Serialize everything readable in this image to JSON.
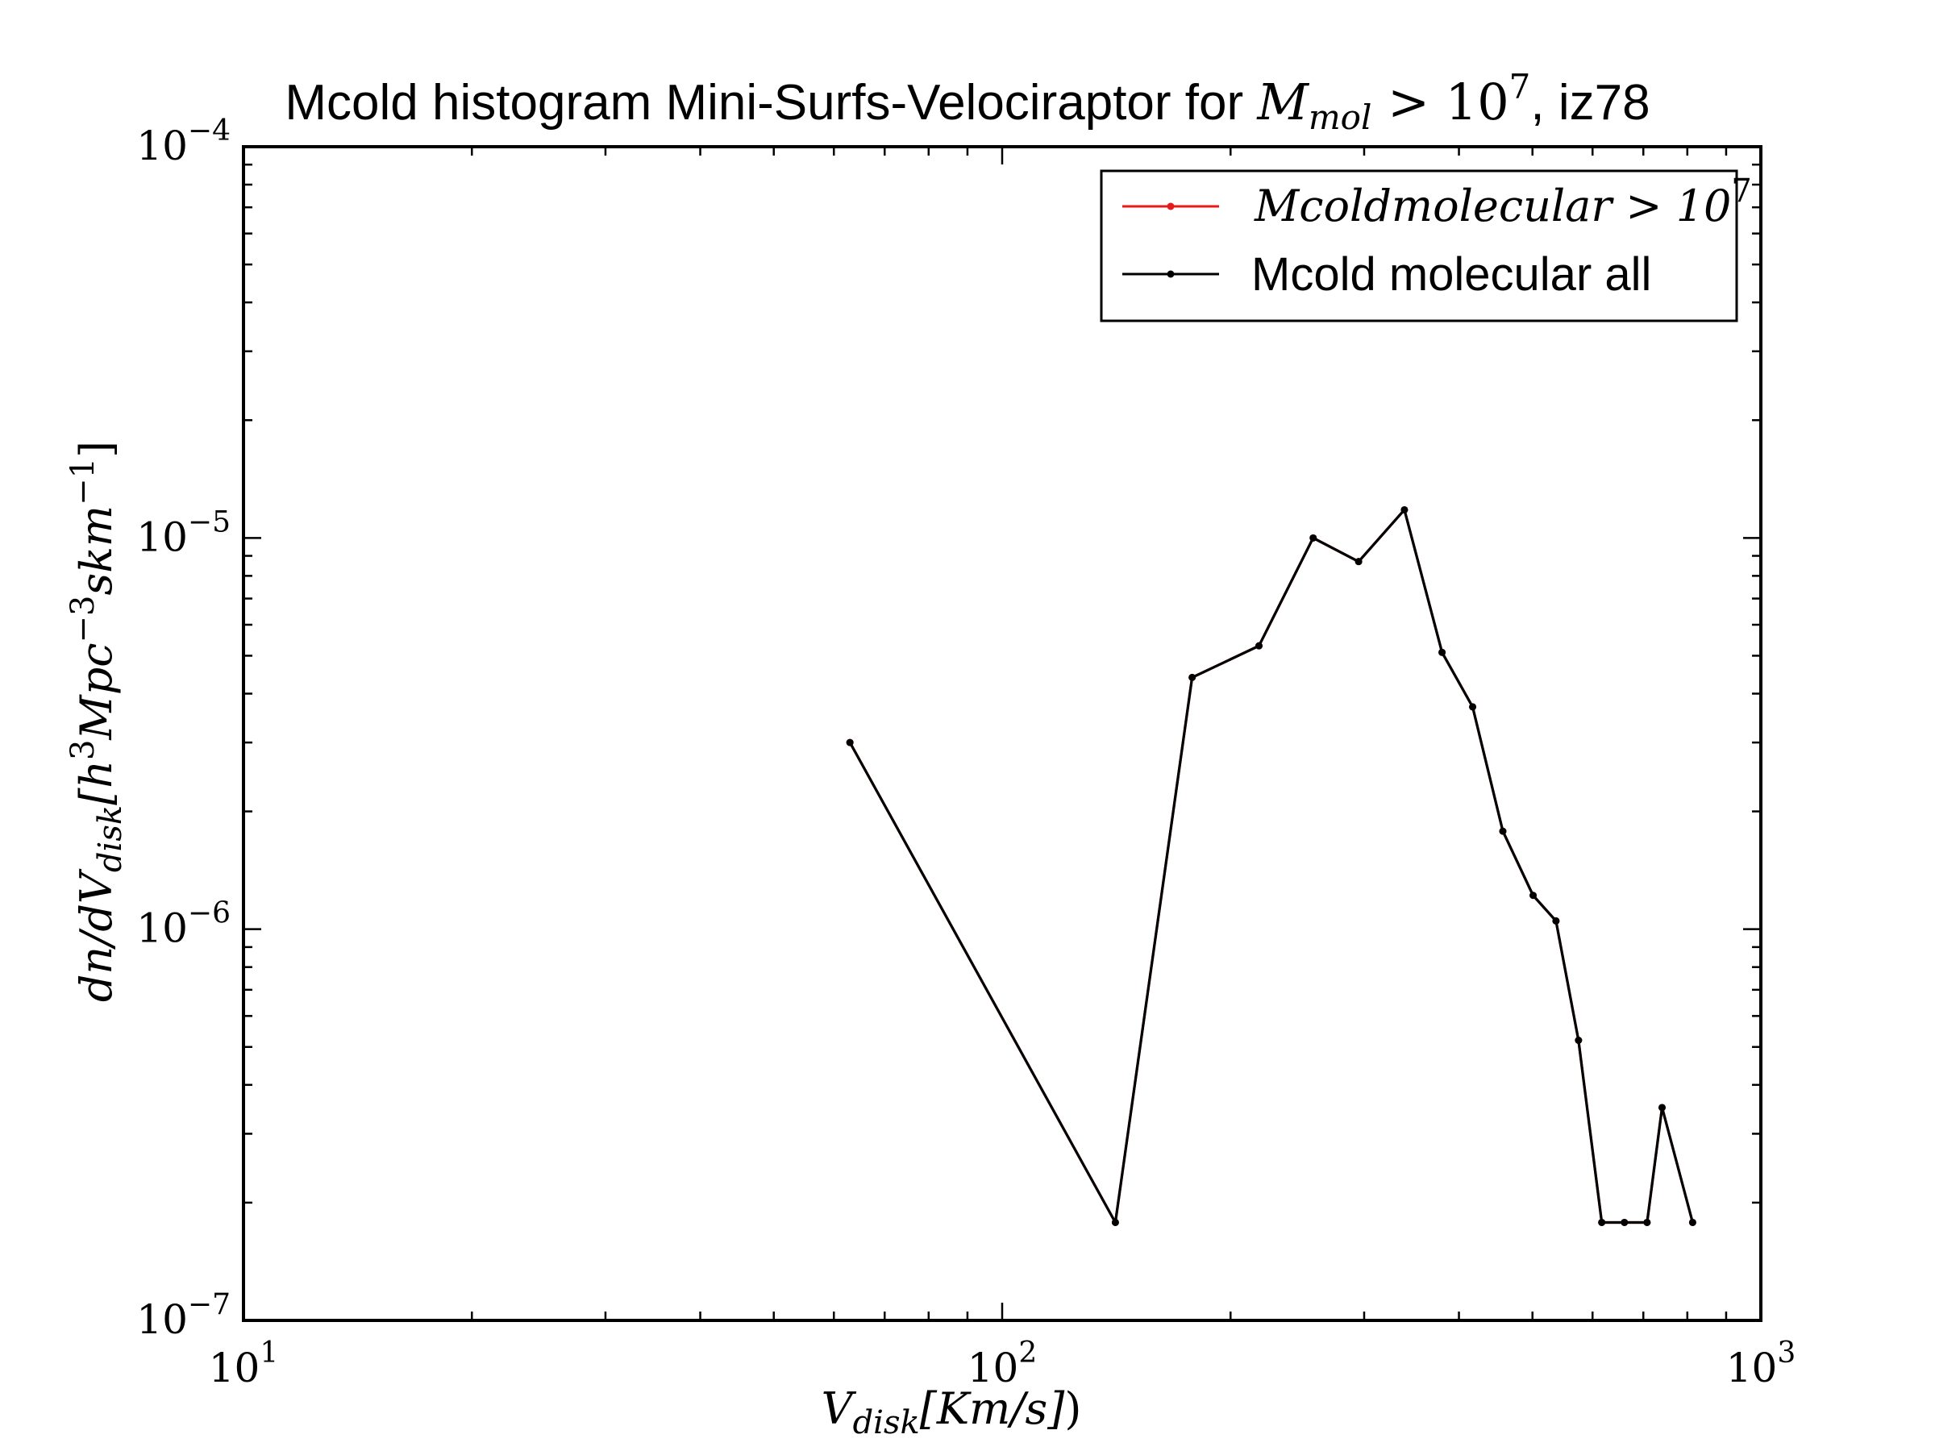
{
  "chart_data": {
    "type": "line",
    "title": {
      "prefix": "Mcold histogram Mini-Surfs-Velociraptor for ",
      "math": "M",
      "math_sub": "mol",
      "math_rel": " > 10",
      "math_sup": "7",
      "suffix": ", iz78"
    },
    "xlabel": {
      "main": "V",
      "sub": "disk",
      "rest": "[Km/s]",
      "close": ")"
    },
    "ylabel": {
      "part1": "dn/dV",
      "sub1": "disk",
      "part2": "[h",
      "sup1": "3",
      "part3": "Mpc",
      "sup2": "−3",
      "part4": "skm",
      "sup3": "−1",
      "part5": "]"
    },
    "xscale": "log",
    "yscale": "log",
    "xlim": [
      10,
      1000
    ],
    "ylim": [
      1e-07,
      0.0001
    ],
    "x_ticks": [
      {
        "value": 10,
        "base": "10",
        "exp": "1"
      },
      {
        "value": 100,
        "base": "10",
        "exp": "2"
      },
      {
        "value": 1000,
        "base": "10",
        "exp": "3"
      }
    ],
    "y_ticks": [
      {
        "value": 1e-07,
        "base": "10",
        "exp": "−7"
      },
      {
        "value": 1e-06,
        "base": "10",
        "exp": "−6"
      },
      {
        "value": 1e-05,
        "base": "10",
        "exp": "−5"
      },
      {
        "value": 0.0001,
        "base": "10",
        "exp": "−4"
      }
    ],
    "legend_position": "top-right",
    "grid": false,
    "series": [
      {
        "name": "Mcoldmolecular > 10",
        "name_sup": "7",
        "color": "#e41a1c",
        "x": [
          63,
          141,
          178,
          218,
          257,
          295,
          339,
          380,
          417,
          457,
          501,
          537,
          575,
          617,
          661,
          708,
          741,
          813
        ],
        "y": [
          3e-06,
          1.78e-07,
          4.4e-06,
          5.3e-06,
          1e-05,
          8.7e-06,
          1.18e-05,
          5.1e-06,
          3.7e-06,
          1.78e-06,
          1.22e-06,
          1.05e-06,
          5.2e-07,
          1.78e-07,
          1.78e-07,
          1.78e-07,
          3.5e-07,
          1.78e-07
        ]
      },
      {
        "name": "Mcold molecular all",
        "color": "#000000",
        "x": [
          63,
          141,
          178,
          218,
          257,
          295,
          339,
          380,
          417,
          457,
          501,
          537,
          575,
          617,
          661,
          708,
          741,
          813
        ],
        "y": [
          3e-06,
          1.78e-07,
          4.4e-06,
          5.3e-06,
          1e-05,
          8.7e-06,
          1.18e-05,
          5.1e-06,
          3.7e-06,
          1.78e-06,
          1.22e-06,
          1.05e-06,
          5.2e-07,
          1.78e-07,
          1.78e-07,
          1.78e-07,
          3.5e-07,
          1.78e-07
        ]
      }
    ]
  }
}
